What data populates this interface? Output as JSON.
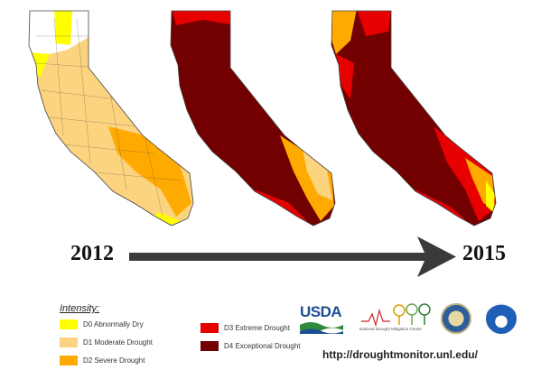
{
  "timeline": {
    "start_year": "2012",
    "end_year": "2015"
  },
  "maps": [
    {
      "year_ref": "2012",
      "dominant_category": "D1"
    },
    {
      "year_ref": "intermediate",
      "dominant_category": "D4"
    },
    {
      "year_ref": "2015",
      "dominant_category": "D4"
    }
  ],
  "legend": {
    "title": "Intensity:",
    "items": [
      {
        "code": "D0",
        "label": "D0 Abnormally Dry",
        "color": "#ffff00"
      },
      {
        "code": "D1",
        "label": "D1 Moderate Drought",
        "color": "#fcd37f"
      },
      {
        "code": "D2",
        "label": "D2 Severe Drought",
        "color": "#ffaa00"
      },
      {
        "code": "D3",
        "label": "D3 Extreme Drought",
        "color": "#e60000"
      },
      {
        "code": "D4",
        "label": "D4 Exceptional Drought",
        "color": "#730000"
      }
    ]
  },
  "logos": {
    "usda": "USDA",
    "ndmc": "National Drought Mitigation Center",
    "commerce": "commerce-seal",
    "noaa": "noaa-seal"
  },
  "source_url": "http://droughtmonitor.unl.edu/"
}
